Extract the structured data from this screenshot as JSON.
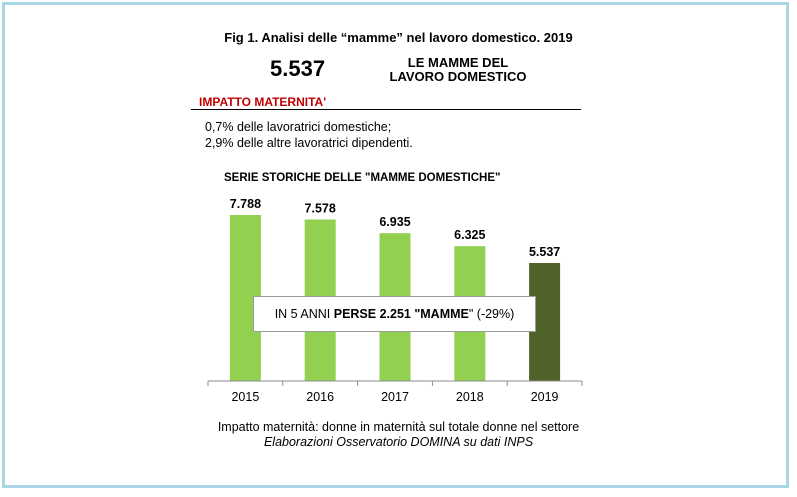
{
  "figure": {
    "title": "Fig 1. Analisi delle “mamme” nel lavoro domestico. 2019",
    "headline_value": "5.537",
    "headline_label_line1": "LE MAMME DEL",
    "headline_label_line2": "LAVORO DOMESTICO",
    "section_title": "IMPATTO MATERNITA'",
    "impact_lines": [
      "0,7% delle lavoratrici domestiche;",
      "2,9% delle altre lavoratrici dipendenti."
    ],
    "footnote": "Impatto maternità: donne in maternità sul totale donne nel settore",
    "source": "Elaborazioni Osservatorio DOMINA su dati INPS"
  },
  "callout": {
    "part1": "IN 5 ANNI ",
    "part2": "PERSE  2.251 \"MAMME",
    "part3": "\" (-29%)"
  },
  "colors": {
    "bar_light": "#92d050",
    "bar_dark": "#4f6228",
    "frame": "#a9d6e5",
    "section_title": "#c00000"
  },
  "chart_data": {
    "type": "bar",
    "title": "SERIE STORICHE DELLE \"MAMME DOMESTICHE\"",
    "categories": [
      "2015",
      "2016",
      "2017",
      "2018",
      "2019"
    ],
    "values": [
      7788,
      7578,
      6935,
      6325,
      5537
    ],
    "data_labels": [
      "7.788",
      "7.578",
      "6.935",
      "6.325",
      "5.537"
    ],
    "xlabel": "",
    "ylabel": "",
    "ylim": [
      0,
      8800
    ],
    "grid": false,
    "legend": "none",
    "highlight_category": "2019"
  }
}
